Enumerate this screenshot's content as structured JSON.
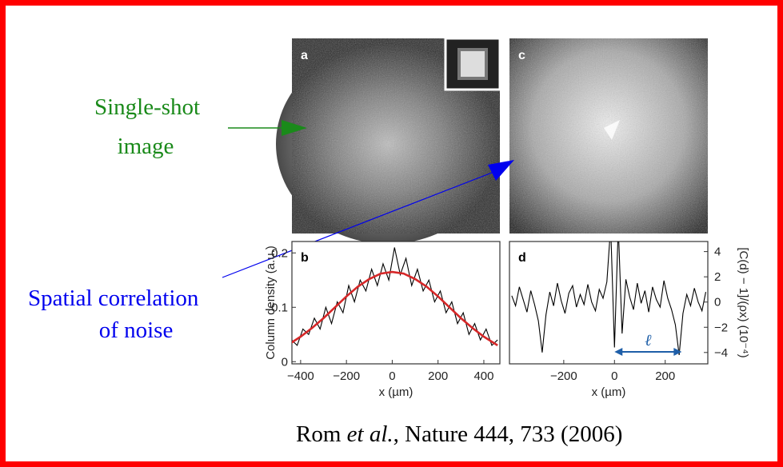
{
  "slide": {
    "single_shot": [
      "Single-shot",
      "image"
    ],
    "correlation": [
      "Spatial correlation",
      "of noise"
    ],
    "citation": {
      "author": "Rom",
      "etal": "et al.",
      "rest": ", Nature 444, 733 (2006)"
    }
  },
  "figure": {
    "label_a": "a",
    "label_c": "c",
    "plot_b": {
      "label": "b",
      "xlabel": "x (µm)",
      "ylabel": "Column density (a.u.)",
      "xlim": [
        -438,
        470
      ],
      "ylim": [
        -0.004,
        0.221
      ],
      "xticks": [
        {
          "value": -400,
          "label": "−400"
        },
        {
          "value": -200,
          "label": "−200"
        },
        0,
        200,
        400
      ],
      "yticks": [
        0,
        0.1,
        0.2
      ],
      "series": [
        {
          "color": "#000000",
          "x": [
            -440,
            -415,
            -390,
            -365,
            -340,
            -315,
            -290,
            -265,
            -240,
            -215,
            -190,
            -165,
            -140,
            -115,
            -90,
            -65,
            -40,
            -15,
            10,
            35,
            60,
            85,
            110,
            135,
            160,
            185,
            210,
            235,
            260,
            285,
            310,
            335,
            360,
            385,
            410,
            435,
            460
          ],
          "values": [
            0.04,
            0.03,
            0.06,
            0.05,
            0.08,
            0.06,
            0.1,
            0.07,
            0.11,
            0.09,
            0.14,
            0.11,
            0.15,
            0.13,
            0.17,
            0.14,
            0.18,
            0.15,
            0.21,
            0.16,
            0.19,
            0.14,
            0.17,
            0.13,
            0.15,
            0.11,
            0.13,
            0.09,
            0.11,
            0.07,
            0.09,
            0.05,
            0.07,
            0.04,
            0.06,
            0.03,
            0.04
          ]
        },
        {
          "color": "#d62728",
          "x": [
            -440,
            -400,
            -350,
            -300,
            -250,
            -200,
            -150,
            -100,
            -50,
            0,
            50,
            100,
            150,
            200,
            250,
            300,
            350,
            400,
            460
          ],
          "values": [
            0.035,
            0.046,
            0.062,
            0.08,
            0.1,
            0.12,
            0.138,
            0.152,
            0.162,
            0.165,
            0.162,
            0.152,
            0.138,
            0.12,
            0.1,
            0.08,
            0.062,
            0.046,
            0.03
          ]
        }
      ]
    },
    "plot_d": {
      "label": "d",
      "xlabel": "x (µm)",
      "ylabel": "[C(d) − 1]/(ρx) (10⁻⁴)",
      "xlim": [
        -414,
        368
      ],
      "ylim": [
        -4.9,
        4.8
      ],
      "xticks": [
        {
          "value": -200,
          "label": "−200"
        },
        0,
        200
      ],
      "yticks": [
        {
          "value": -4,
          "label": "−4"
        },
        {
          "value": -2,
          "label": "−2"
        },
        0,
        2,
        4
      ],
      "ell_label": "ℓ",
      "ell_span": [
        0,
        265
      ],
      "series": [
        {
          "color": "#000000",
          "x": [
            -405,
            -390,
            -375,
            -360,
            -345,
            -330,
            -315,
            -300,
            -285,
            -270,
            -255,
            -240,
            -225,
            -210,
            -195,
            -180,
            -165,
            -150,
            -135,
            -120,
            -105,
            -90,
            -75,
            -60,
            -45,
            -30,
            -15,
            0,
            15,
            30,
            45,
            60,
            75,
            90,
            105,
            120,
            135,
            150,
            165,
            180,
            195,
            210,
            225,
            240,
            255,
            270,
            285,
            300,
            315,
            330,
            345,
            360
          ],
          "values": [
            0.5,
            -0.3,
            1.2,
            0.2,
            -0.8,
            0.9,
            -0.2,
            -1.5,
            -4.0,
            -1.0,
            0.8,
            -0.3,
            1.5,
            0.1,
            -0.9,
            0.7,
            1.3,
            -0.4,
            0.6,
            -0.2,
            1.4,
            0.0,
            -0.7,
            1.0,
            0.3,
            1.6,
            6.0,
            -3.6,
            6.0,
            -2.5,
            1.8,
            0.4,
            -0.6,
            1.5,
            -0.1,
            0.9,
            -0.8,
            1.2,
            0.2,
            -0.4,
            1.7,
            0.3,
            -0.6,
            -1.8,
            -4.2,
            -0.9,
            0.6,
            -0.3,
            1.1,
            0.0,
            -0.7,
            0.8
          ]
        }
      ]
    }
  }
}
